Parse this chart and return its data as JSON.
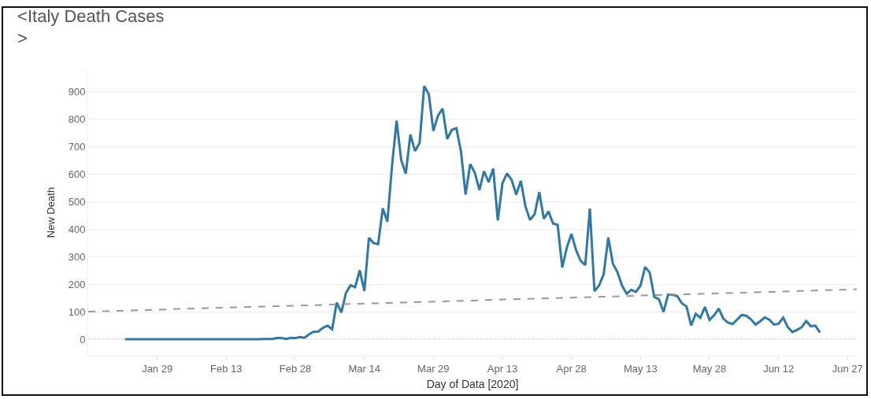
{
  "chart_data": {
    "type": "line",
    "title": "<Italy Death Cases\n>",
    "xlabel": "Day of Data [2020]",
    "ylabel": "New Death",
    "xlim": [
      "2020-01-14",
      "2020-06-29"
    ],
    "xticks": [
      {
        "value": "2020-01-29",
        "label": "Jan 29"
      },
      {
        "value": "2020-02-13",
        "label": "Feb 13"
      },
      {
        "value": "2020-02-28",
        "label": "Feb 28"
      },
      {
        "value": "2020-03-14",
        "label": "Mar 14"
      },
      {
        "value": "2020-03-29",
        "label": "Mar 29"
      },
      {
        "value": "2020-04-13",
        "label": "Apr 13"
      },
      {
        "value": "2020-04-28",
        "label": "Apr 28"
      },
      {
        "value": "2020-05-13",
        "label": "May 13"
      },
      {
        "value": "2020-05-28",
        "label": "May 28"
      },
      {
        "value": "2020-06-12",
        "label": "Jun 12"
      },
      {
        "value": "2020-06-27",
        "label": "Jun 27"
      }
    ],
    "ylim": [
      -60,
      980
    ],
    "yticks": [
      0,
      100,
      200,
      300,
      400,
      500,
      600,
      700,
      800,
      900
    ],
    "grid": "y",
    "marker": "none",
    "line_style": "solid",
    "ref_lines": [
      {
        "axis": "y",
        "value": 0,
        "line_style": "dotted",
        "color": "#bbbbbb"
      }
    ],
    "series": [
      {
        "color": "#2f78a8",
        "x": [
          "2020-01-22",
          "2020-02-20",
          "2020-02-21",
          "2020-02-22",
          "2020-02-23",
          "2020-02-24",
          "2020-02-25",
          "2020-02-26",
          "2020-02-27",
          "2020-02-28",
          "2020-02-29",
          "2020-03-01",
          "2020-03-02",
          "2020-03-03",
          "2020-03-04",
          "2020-03-05",
          "2020-03-06",
          "2020-03-07",
          "2020-03-08",
          "2020-03-09",
          "2020-03-10",
          "2020-03-11",
          "2020-03-12",
          "2020-03-13",
          "2020-03-14",
          "2020-03-15",
          "2020-03-16",
          "2020-03-17",
          "2020-03-18",
          "2020-03-19",
          "2020-03-20",
          "2020-03-21",
          "2020-03-22",
          "2020-03-23",
          "2020-03-24",
          "2020-03-25",
          "2020-03-26",
          "2020-03-27",
          "2020-03-28",
          "2020-03-29",
          "2020-03-30",
          "2020-03-31",
          "2020-04-01",
          "2020-04-02",
          "2020-04-03",
          "2020-04-04",
          "2020-04-05",
          "2020-04-06",
          "2020-04-07",
          "2020-04-08",
          "2020-04-09",
          "2020-04-10",
          "2020-04-11",
          "2020-04-12",
          "2020-04-13",
          "2020-04-14",
          "2020-04-15",
          "2020-04-16",
          "2020-04-17",
          "2020-04-18",
          "2020-04-19",
          "2020-04-20",
          "2020-04-21",
          "2020-04-22",
          "2020-04-23",
          "2020-04-24",
          "2020-04-25",
          "2020-04-26",
          "2020-04-27",
          "2020-04-28",
          "2020-04-29",
          "2020-04-30",
          "2020-05-01",
          "2020-05-02",
          "2020-05-03",
          "2020-05-04",
          "2020-05-05",
          "2020-05-06",
          "2020-05-07",
          "2020-05-08",
          "2020-05-09",
          "2020-05-10",
          "2020-05-11",
          "2020-05-12",
          "2020-05-13",
          "2020-05-14",
          "2020-05-15",
          "2020-05-16",
          "2020-05-17",
          "2020-05-18",
          "2020-05-19",
          "2020-05-20",
          "2020-05-21",
          "2020-05-22",
          "2020-05-23",
          "2020-05-24",
          "2020-05-25",
          "2020-05-26",
          "2020-05-27",
          "2020-05-28",
          "2020-05-29",
          "2020-05-30",
          "2020-05-31",
          "2020-06-01",
          "2020-06-02",
          "2020-06-03",
          "2020-06-04",
          "2020-06-05",
          "2020-06-06",
          "2020-06-07",
          "2020-06-08",
          "2020-06-09",
          "2020-06-10",
          "2020-06-11",
          "2020-06-12",
          "2020-06-13",
          "2020-06-14",
          "2020-06-15",
          "2020-06-16",
          "2020-06-17",
          "2020-06-18",
          "2020-06-19",
          "2020-06-20",
          "2020-06-21"
        ],
        "values": [
          0,
          0,
          1,
          1,
          1,
          4,
          4,
          1,
          5,
          4,
          8,
          5,
          18,
          27,
          28,
          41,
          49,
          36,
          133,
          97,
          168,
          196,
          189,
          250,
          175,
          368,
          349,
          345,
          475,
          427,
          627,
          793,
          651,
          601,
          743,
          683,
          712,
          919,
          889,
          756,
          812,
          837,
          727,
          760,
          766,
          681,
          525,
          636,
          604,
          542,
          610,
          570,
          619,
          431,
          566,
          602,
          578,
          525,
          575,
          482,
          433,
          454,
          534,
          437,
          464,
          420,
          415,
          260,
          333,
          382,
          323,
          285,
          269,
          474,
          174,
          195,
          236,
          369,
          274,
          243,
          194,
          165,
          179,
          172,
          195,
          262,
          242,
          153,
          145,
          99,
          162,
          161,
          156,
          130,
          119,
          50,
          92,
          78,
          117,
          70,
          87,
          111,
          75,
          60,
          55,
          71,
          88,
          85,
          72,
          53,
          65,
          79,
          71,
          53,
          56,
          78,
          44,
          26,
          34,
          43,
          66,
          47,
          49,
          24
        ]
      },
      {
        "type": "line",
        "color": "#999999",
        "line_style": "dashed",
        "x": [
          "2020-01-14",
          "2020-06-29"
        ],
        "values": [
          100,
          181
        ]
      }
    ]
  }
}
